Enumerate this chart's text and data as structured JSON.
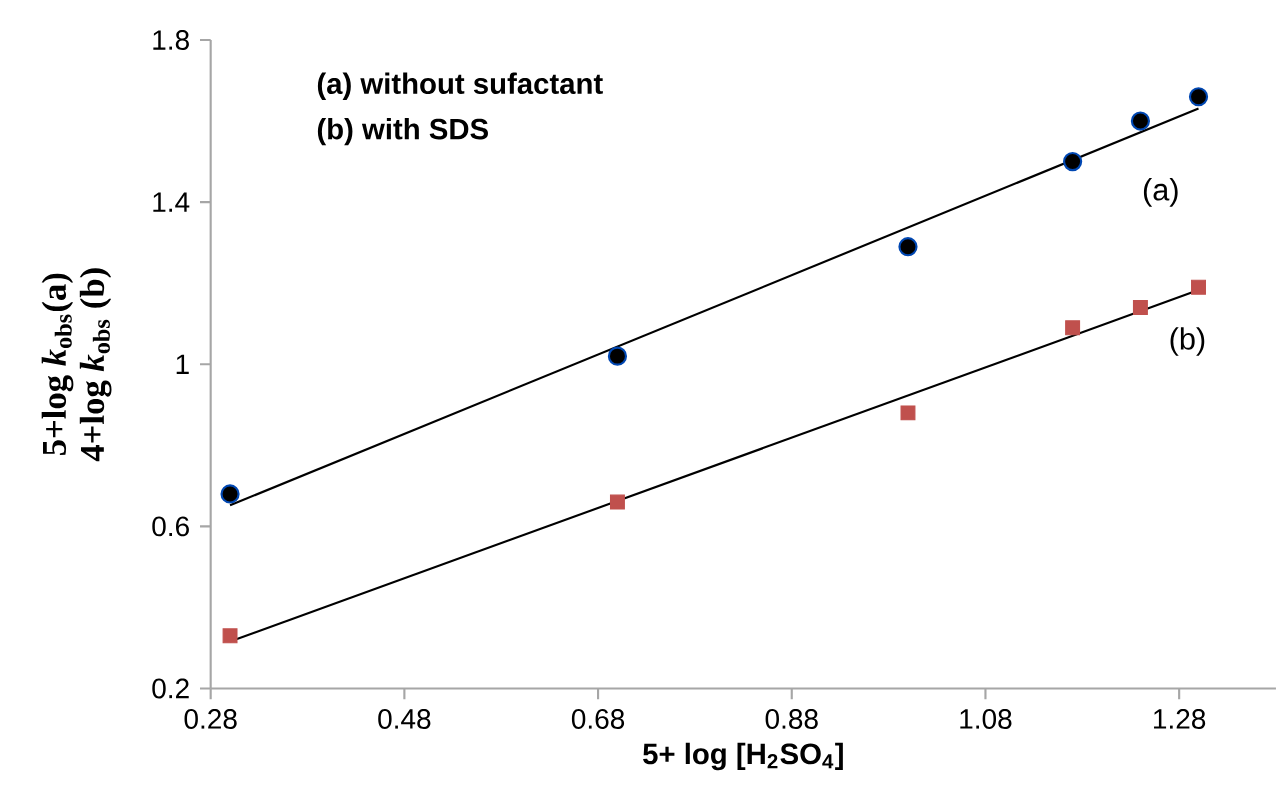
{
  "chart_data": {
    "type": "scatter",
    "xlabel": "5+ log [H$_{2}$SO$_{4}$]",
    "ylabel": "5+log *k*$_{obs}$(a)",
    "xlim": [
      0.28,
      1.38
    ],
    "xticks": [
      0.28,
      0.48,
      0.68,
      0.88,
      1.08,
      1.28
    ],
    "ylim": [
      0.2,
      1.8
    ],
    "yticks": [
      0.2,
      0.6,
      1,
      1.4,
      1.8
    ],
    "series": [
      {
        "marker": "circle",
        "color": "#000000",
        "x": [
          0.3,
          0.7,
          1.0,
          1.17,
          1.24,
          1.3
        ],
        "values": [
          0.68,
          1.02,
          1.29,
          1.5,
          1.6,
          1.66
        ]
      },
      {
        "marker": "square",
        "color": "#c0504d",
        "x": [
          0.3,
          0.7,
          1.0,
          1.17,
          1.24,
          1.3
        ],
        "values": [
          0.33,
          0.66,
          0.88,
          1.09,
          1.14,
          1.19
        ]
      },
      {
        "type": "line",
        "marker": "none",
        "color": "#000000",
        "x": [
          0.3,
          1.3
        ],
        "values": [
          0.652,
          1.631
        ]
      },
      {
        "type": "line",
        "marker": "none",
        "color": "#000000",
        "x": [
          0.3,
          1.3
        ],
        "values": [
          0.316,
          1.183
        ]
      }
    ],
    "annotations": [
      "(a) without sufactant",
      "(b) with SDS",
      "(a)",
      "(b)",
      "4+log *k*$_{obs}$ (b)"
    ]
  }
}
